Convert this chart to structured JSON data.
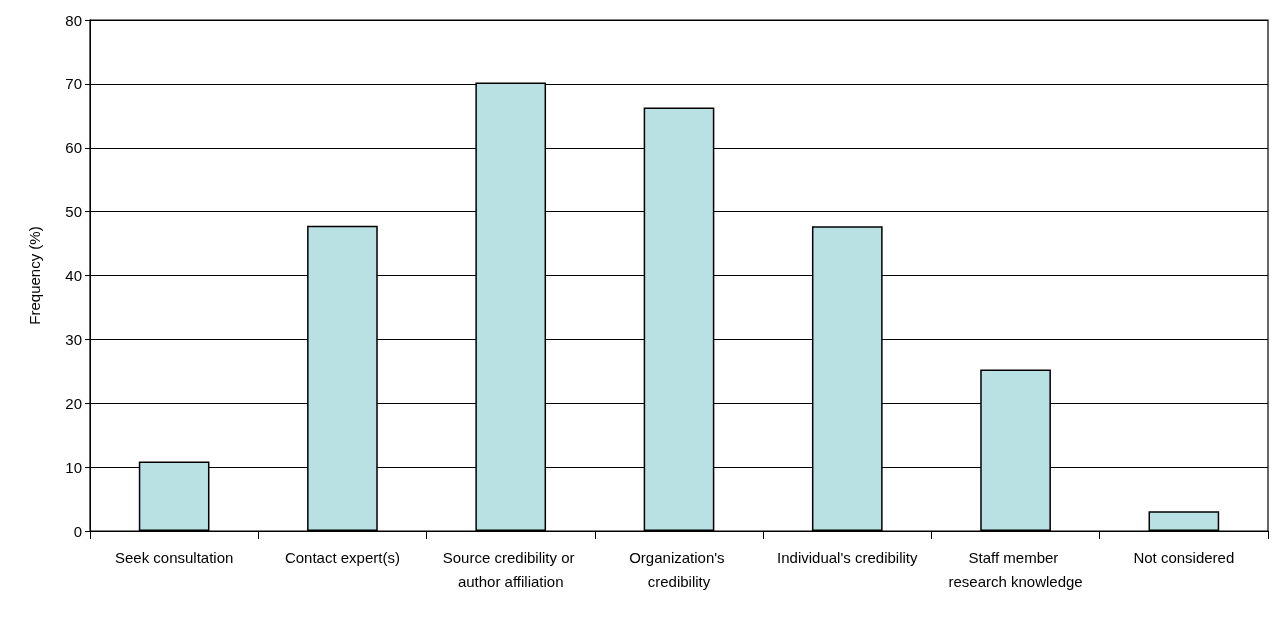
{
  "chart_data": {
    "type": "bar",
    "ylabel": "Frequency (%)",
    "categories": [
      "Seek consultation",
      "Contact expert(s)",
      "Source credibility or author affiliation",
      "Organization's credibility",
      "Individual's credibility",
      "Staff member research knowledge",
      "Not considered"
    ],
    "values": [
      10.9,
      47.8,
      70.2,
      66.3,
      47.7,
      25.3,
      3.1
    ],
    "color": "#b9e0e3",
    "ylim": [
      0,
      80
    ],
    "yticks": [
      0,
      10,
      20,
      30,
      40,
      50,
      60,
      70,
      80
    ],
    "grid": "y"
  }
}
